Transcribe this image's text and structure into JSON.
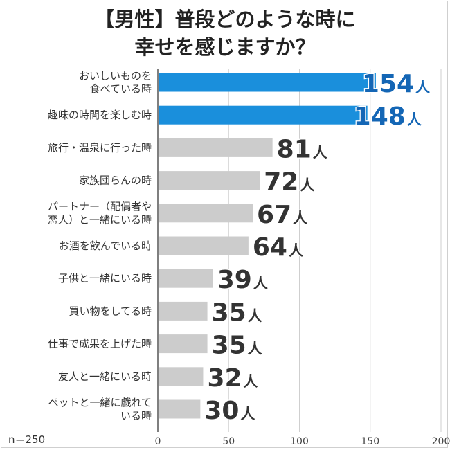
{
  "chart_data": {
    "type": "bar",
    "orientation": "horizontal",
    "title_lines": [
      "【男性】普段どのような時に",
      "幸せを感じますか？"
    ],
    "categories": [
      [
        "おいしいものを",
        "食べている時"
      ],
      [
        "趣味の時間を楽しむ時"
      ],
      [
        "旅行・温泉に行った時"
      ],
      [
        "家族団らんの時"
      ],
      [
        "パートナー（配偶者や",
        "恋人）と一緒にいる時"
      ],
      [
        "お酒を飲んでいる時"
      ],
      [
        "子供と一緒にいる時"
      ],
      [
        "買い物をしてる時"
      ],
      [
        "仕事で成果を上げた時"
      ],
      [
        "友人と一緒にいる時"
      ],
      [
        "ペットと一緒に戯れて",
        "いる時"
      ]
    ],
    "values": [
      154,
      148,
      81,
      72,
      67,
      64,
      39,
      35,
      35,
      32,
      30
    ],
    "value_unit": "人",
    "highlighted_count": 2,
    "xlim": [
      0,
      200
    ],
    "xticks": [
      0,
      50,
      100,
      150,
      200
    ],
    "grid": "vertical",
    "colors": {
      "highlight_bar": "#1a8fdc",
      "highlight_label": "#1466b5",
      "normal_bar": "#cccccc",
      "normal_label": "#333333",
      "grid": "#cfcfcf"
    },
    "note": "n＝250"
  }
}
